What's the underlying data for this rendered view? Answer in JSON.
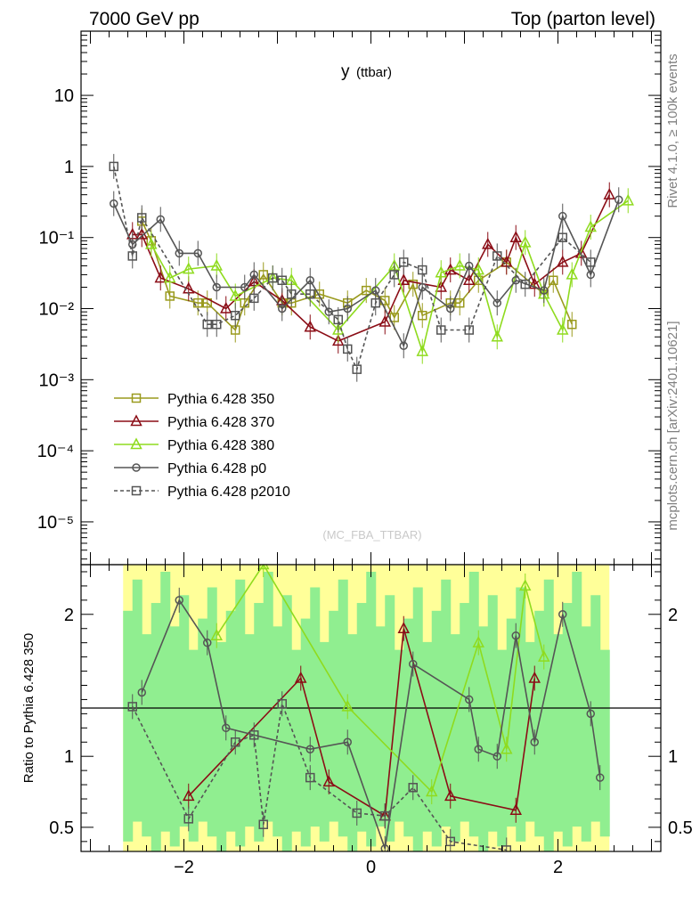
{
  "header": {
    "left": "7000 GeV pp",
    "right": "Top (parton level)"
  },
  "side_labels": {
    "top": "Rivet 4.1.0, ≥ 100k events",
    "bottom": "mcplots.cern.ch [arXiv:2401.10621]"
  },
  "chart_data": [
    {
      "type": "line",
      "title": "y (ttbar)",
      "title_main": "y",
      "title_sub": "(ttbar)",
      "watermark": "(MC_FBA_TTBAR)",
      "y_scale": "log",
      "ylim": [
        2.5e-06,
        80
      ],
      "xlim": [
        -3.1,
        3.1
      ],
      "grid": false,
      "legend_position": "center-left",
      "y_ticks": [
        {
          "value": 10,
          "label": "10"
        },
        {
          "value": 1,
          "label": "1"
        },
        {
          "value": 0.1,
          "label": "10⁻¹"
        },
        {
          "value": 0.01,
          "label": "10⁻²"
        },
        {
          "value": 0.001,
          "label": "10⁻³"
        },
        {
          "value": 0.0001,
          "label": "10⁻⁴"
        },
        {
          "value": 1e-05,
          "label": "10⁻⁵"
        }
      ],
      "series": [
        {
          "name": "Pythia 6.428 350",
          "color": "#9a9a1e",
          "marker": "square",
          "dash": false,
          "x": [
            -2.45,
            -2.35,
            -2.15,
            -1.85,
            -1.75,
            -1.45,
            -1.35,
            -1.15,
            -0.95,
            -0.85,
            -0.55,
            -0.25,
            -0.05,
            0.15,
            0.25,
            0.45,
            0.55,
            0.85,
            0.95,
            1.15,
            1.45,
            1.85,
            1.95,
            2.15
          ],
          "y": [
            0.17,
            0.09,
            0.015,
            0.012,
            0.012,
            0.005,
            0.012,
            0.03,
            0.012,
            0.012,
            0.016,
            0.012,
            0.018,
            0.013,
            0.0075,
            0.022,
            0.008,
            0.012,
            0.012,
            0.025,
            0.045,
            0.016,
            0.025,
            0.006
          ]
        },
        {
          "name": "Pythia 6.428 370",
          "color": "#8b0d16",
          "marker": "triangle",
          "dash": false,
          "x": [
            -2.55,
            -2.45,
            -2.25,
            -1.95,
            -1.55,
            -1.25,
            -0.95,
            -0.65,
            -0.35,
            0.15,
            0.35,
            0.75,
            0.85,
            1.05,
            1.25,
            1.45,
            1.55,
            1.75,
            2.05,
            2.25,
            2.55
          ],
          "y": [
            0.11,
            0.11,
            0.027,
            0.019,
            0.01,
            0.024,
            0.013,
            0.0055,
            0.0035,
            0.0065,
            0.025,
            0.02,
            0.035,
            0.025,
            0.08,
            0.045,
            0.1,
            0.022,
            0.045,
            0.06,
            0.4
          ]
        },
        {
          "name": "Pythia 6.428 380",
          "color": "#8fdb1e",
          "marker": "triangle",
          "dash": false,
          "x": [
            -2.35,
            -2.15,
            -1.95,
            -1.65,
            -1.45,
            -1.05,
            -0.85,
            -0.35,
            0.25,
            0.55,
            0.75,
            0.95,
            1.15,
            1.35,
            1.65,
            1.85,
            2.05,
            2.15,
            2.35,
            2.75
          ],
          "y": [
            0.08,
            0.027,
            0.036,
            0.04,
            0.015,
            0.027,
            0.025,
            0.005,
            0.04,
            0.0025,
            0.032,
            0.04,
            0.035,
            0.004,
            0.085,
            0.016,
            0.005,
            0.03,
            0.14,
            0.33
          ]
        },
        {
          "name": "Pythia 6.428 p0",
          "color": "#555555",
          "marker": "circle",
          "dash": false,
          "x": [
            -2.75,
            -2.55,
            -2.25,
            -2.05,
            -1.85,
            -1.65,
            -1.35,
            -1.25,
            -0.95,
            -0.65,
            -0.45,
            -0.25,
            0.05,
            0.35,
            0.55,
            0.85,
            1.05,
            1.35,
            1.55,
            1.85,
            2.05,
            2.35,
            2.65
          ],
          "y": [
            0.3,
            0.08,
            0.18,
            0.06,
            0.06,
            0.02,
            0.02,
            0.03,
            0.01,
            0.025,
            0.009,
            0.01,
            0.018,
            0.003,
            0.02,
            0.01,
            0.04,
            0.012,
            0.025,
            0.018,
            0.2,
            0.03,
            0.34
          ]
        },
        {
          "name": "Pythia 6.428 p2010",
          "color": "#555555",
          "marker": "square",
          "dash": true,
          "x": [
            -2.75,
            -2.55,
            -2.45,
            -1.75,
            -1.65,
            -1.45,
            -1.25,
            -1.05,
            -0.95,
            -0.85,
            -0.65,
            -0.35,
            -0.25,
            -0.15,
            0.05,
            0.25,
            0.35,
            0.55,
            0.75,
            1.05,
            1.35,
            1.65,
            2.05,
            2.35
          ],
          "y": [
            1.0,
            0.055,
            0.19,
            0.006,
            0.006,
            0.008,
            0.014,
            0.027,
            0.025,
            0.016,
            0.016,
            0.007,
            0.0027,
            0.0014,
            0.012,
            0.03,
            0.045,
            0.035,
            0.005,
            0.005,
            0.055,
            0.022,
            0.1,
            0.045
          ]
        }
      ]
    },
    {
      "type": "line",
      "ylabel": "Ratio to Pythia 6.428 350",
      "y_scale": "linear",
      "ylim": [
        0.33,
        2.35
      ],
      "xlim": [
        -3.1,
        3.1
      ],
      "reference_line": 1,
      "x_ticks": [
        {
          "value": -2,
          "label": "−2"
        },
        {
          "value": 0,
          "label": "0"
        },
        {
          "value": 2,
          "label": "2"
        }
      ],
      "y_ticks": [
        {
          "value": 2,
          "label": "2"
        },
        {
          "value": 1,
          "label": "1"
        },
        {
          "value": 0.5,
          "label": "0.5"
        }
      ],
      "band_colors": {
        "outer": "#ffff99",
        "inner": "#90ee90"
      },
      "band_x_range": [
        -2.65,
        2.55
      ],
      "series": [
        {
          "name": "Pythia 6.428 370",
          "color": "#8b0d16",
          "marker": "triangle",
          "dash": false,
          "x": [
            -1.95,
            -0.75,
            -0.45,
            0.15,
            0.35,
            0.85,
            1.55,
            1.75
          ],
          "y": [
            0.72,
            1.55,
            0.82,
            0.58,
            1.9,
            0.72,
            0.62,
            1.55
          ]
        },
        {
          "name": "Pythia 6.428 380",
          "color": "#8fdb1e",
          "marker": "triangle",
          "dash": false,
          "x": [
            -1.65,
            -1.15,
            -0.25,
            0.65,
            1.15,
            1.45,
            1.65,
            1.85
          ],
          "y": [
            1.85,
            2.35,
            1.35,
            0.75,
            1.8,
            1.05,
            2.2,
            1.7
          ]
        },
        {
          "name": "Pythia 6.428 p0",
          "color": "#555555",
          "marker": "circle",
          "dash": false,
          "x": [
            -2.45,
            -2.05,
            -1.75,
            -1.55,
            -0.65,
            -0.25,
            0.15,
            0.45,
            1.05,
            1.15,
            1.35,
            1.55,
            1.75,
            2.05,
            2.35,
            2.45
          ],
          "y": [
            1.45,
            2.1,
            1.8,
            1.2,
            1.05,
            1.1,
            0.35,
            1.65,
            1.4,
            1.05,
            1.0,
            1.85,
            1.1,
            2.0,
            1.3,
            0.85
          ]
        },
        {
          "name": "Pythia 6.428 p2010",
          "color": "#555555",
          "marker": "square",
          "dash": true,
          "x": [
            -2.55,
            -1.95,
            -1.45,
            -1.25,
            -1.15,
            -0.95,
            -0.65,
            -0.15,
            0.15,
            0.45,
            0.85,
            1.45
          ],
          "y": [
            1.35,
            0.56,
            1.1,
            1.15,
            0.52,
            1.37,
            0.85,
            0.6,
            0.58,
            0.78,
            0.4,
            0.34
          ]
        }
      ]
    }
  ]
}
